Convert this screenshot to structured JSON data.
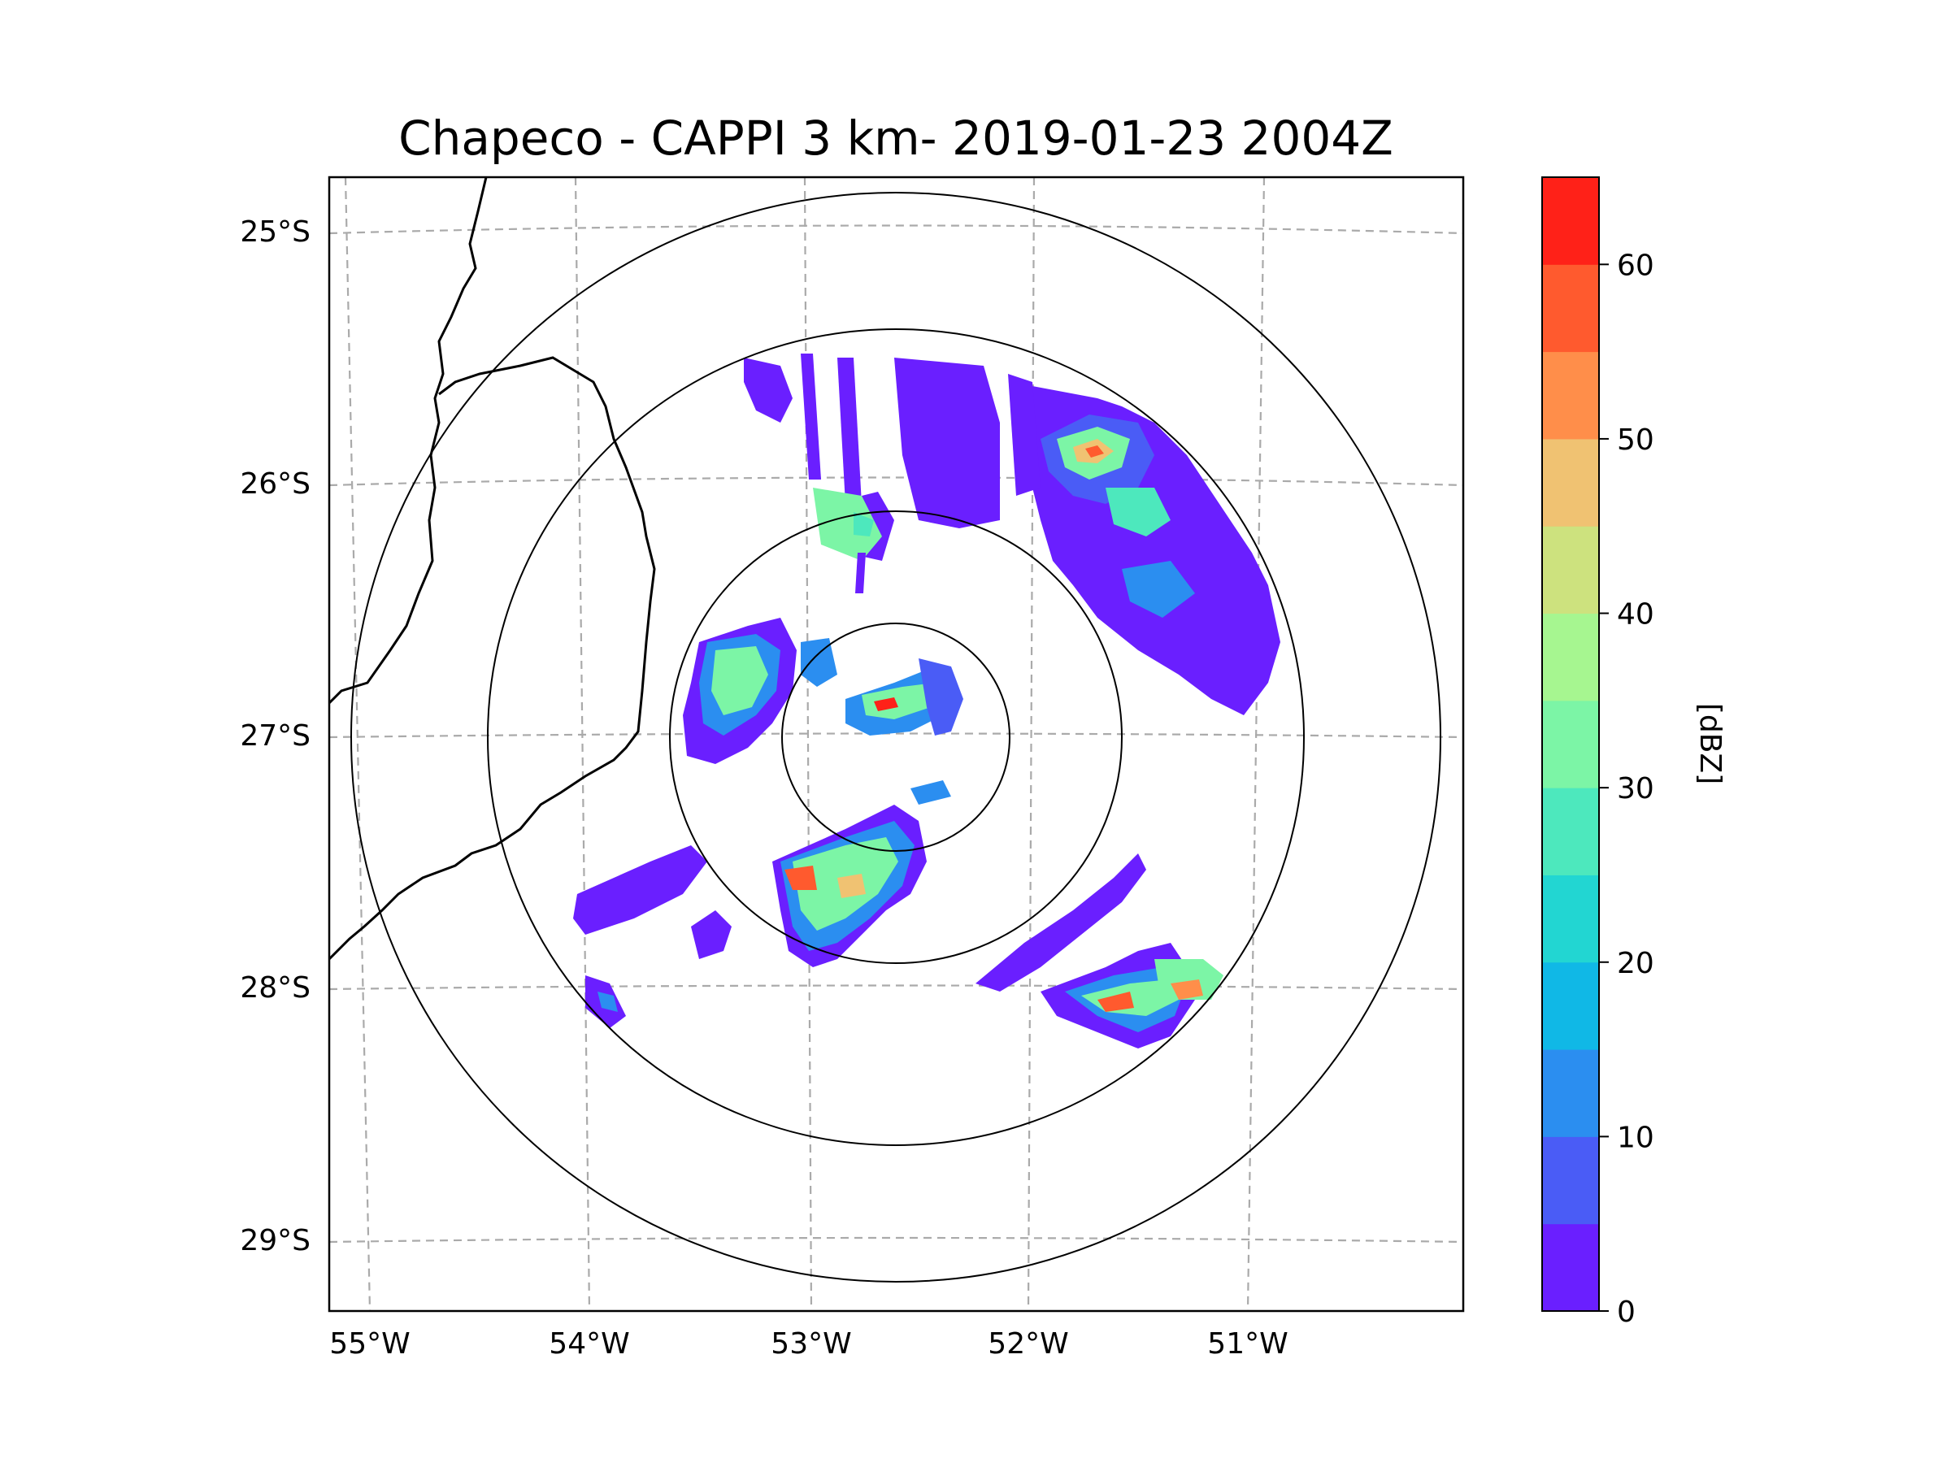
{
  "title": "Chapeco - CAPPI 3 km- 2019-01-23 2004Z",
  "map": {
    "lat_labels": [
      "25°S",
      "26°S",
      "27°S",
      "28°S",
      "29°S"
    ],
    "lon_labels": [
      "55°W",
      "54°W",
      "53°W",
      "52°W",
      "51°W"
    ],
    "range_rings": 4
  },
  "colorbar": {
    "label": "[dBZ]",
    "tick_labels": [
      "0",
      "10",
      "20",
      "30",
      "40",
      "50",
      "60"
    ],
    "min": 0,
    "max": 65,
    "levels": [
      0,
      5,
      10,
      15,
      20,
      25,
      30,
      35,
      40,
      45,
      50,
      55,
      60,
      65
    ],
    "colors": [
      "#6a1fff",
      "#4a5cf6",
      "#2b8ef0",
      "#10b8e6",
      "#22d6d2",
      "#4de8bd",
      "#7cf5a6",
      "#a6f690",
      "#cde27e",
      "#f0c272",
      "#ff8e4a",
      "#ff5a2e",
      "#ff2118"
    ]
  }
}
